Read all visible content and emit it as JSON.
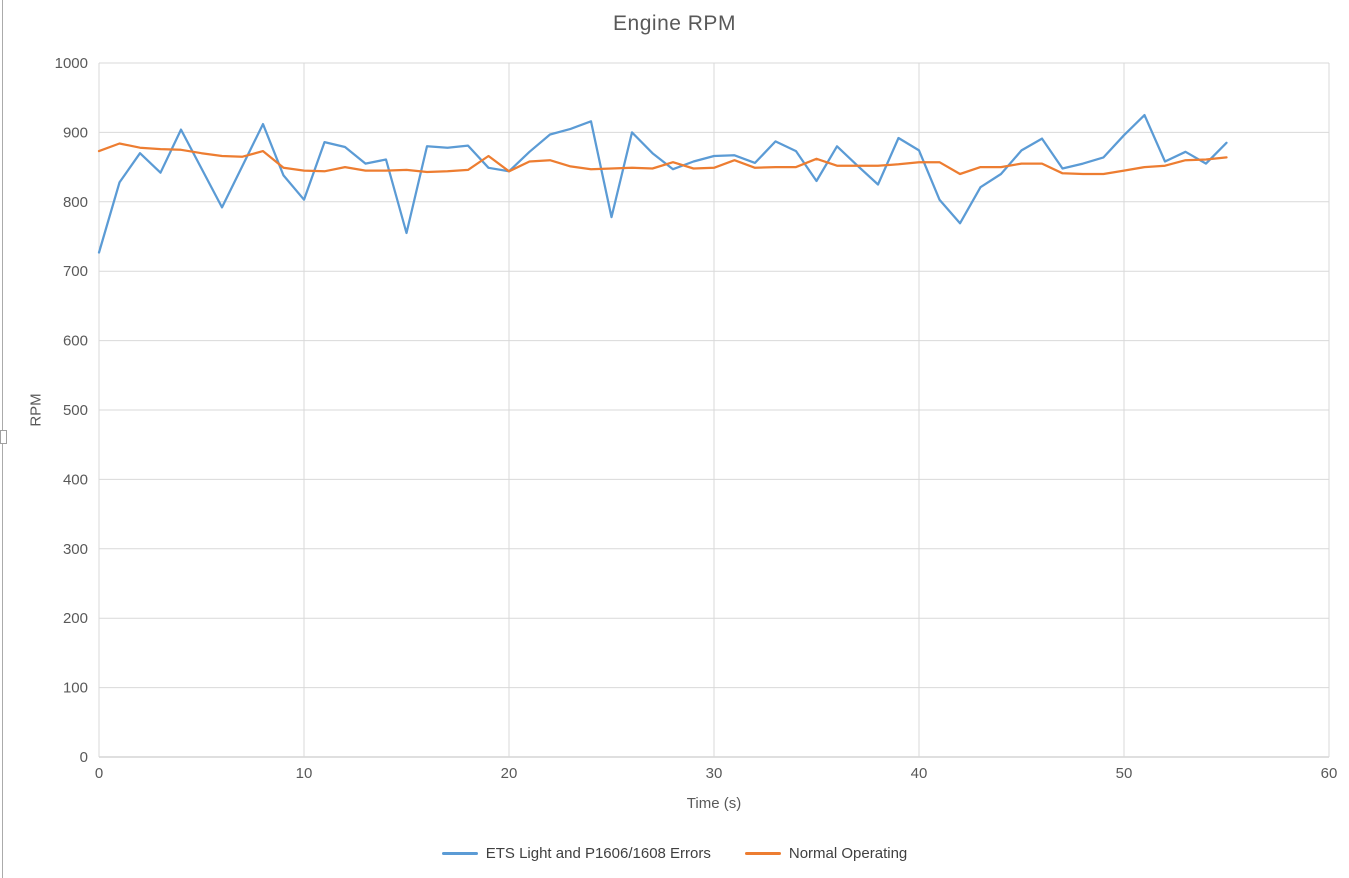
{
  "window": {
    "title": "Engine RPM"
  },
  "colors": {
    "background": "#ffffff",
    "gridline": "#d9d9d9",
    "axis_line": "#bfbfbf",
    "tick_text": "#595959",
    "title_text": "#595959",
    "legend_text": "#404040",
    "series_blue": "#5b9bd5",
    "series_orange": "#ed7d31",
    "window_border": "#ababab"
  },
  "chart_data": {
    "type": "line",
    "title": "Engine RPM",
    "xlabel": "Time (s)",
    "ylabel": "RPM",
    "xlim": [
      0,
      60
    ],
    "ylim": [
      0,
      1000
    ],
    "x_ticks": [
      0,
      10,
      20,
      30,
      40,
      50,
      60
    ],
    "y_ticks": [
      0,
      100,
      200,
      300,
      400,
      500,
      600,
      700,
      800,
      900,
      1000
    ],
    "grid": true,
    "legend_position": "bottom-center",
    "x_step_seconds": 1,
    "x_start": 0,
    "series": [
      {
        "name": "ETS Light and P1606/1608 Errors",
        "color": "#5b9bd5",
        "values": [
          727,
          828,
          870,
          842,
          904,
          848,
          792,
          852,
          912,
          838,
          803,
          886,
          879,
          855,
          861,
          755,
          880,
          878,
          881,
          849,
          844,
          872,
          897,
          905,
          916,
          778,
          900,
          870,
          847,
          858,
          866,
          867,
          856,
          887,
          873,
          830,
          880,
          852,
          825,
          892,
          874,
          803,
          769,
          821,
          840,
          874,
          891,
          848,
          855,
          864,
          896,
          925,
          858,
          872,
          855,
          885
        ]
      },
      {
        "name": "Normal Operating",
        "color": "#ed7d31",
        "values": [
          873,
          884,
          878,
          876,
          875,
          870,
          866,
          865,
          873,
          849,
          845,
          844,
          850,
          845,
          845,
          846,
          843,
          844,
          846,
          866,
          844,
          858,
          860,
          851,
          847,
          848,
          849,
          848,
          857,
          848,
          849,
          860,
          849,
          850,
          850,
          862,
          852,
          852,
          852,
          854,
          857,
          857,
          840,
          850,
          850,
          855,
          855,
          841,
          840,
          840,
          845,
          850,
          852,
          860,
          861,
          864
        ]
      }
    ]
  }
}
